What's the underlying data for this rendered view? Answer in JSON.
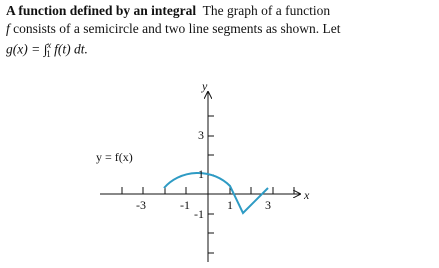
{
  "header": {
    "title": "A function defined by an integral"
  },
  "text": [
    "The graph of a function",
    "f",
    "consists of a semicircle and two line segments as shown. Let",
    "g(x) = ∫",
    "x",
    "1",
    "f(t) dt."
  ],
  "graph": {
    "y_axis_label": "y",
    "x_axis_label": "x",
    "curve_label": "y = f(x)",
    "y_tick_labels": [
      "3",
      "1",
      "-1"
    ],
    "x_tick_labels": [
      "-3",
      "-1",
      "1",
      "3"
    ]
  }
}
